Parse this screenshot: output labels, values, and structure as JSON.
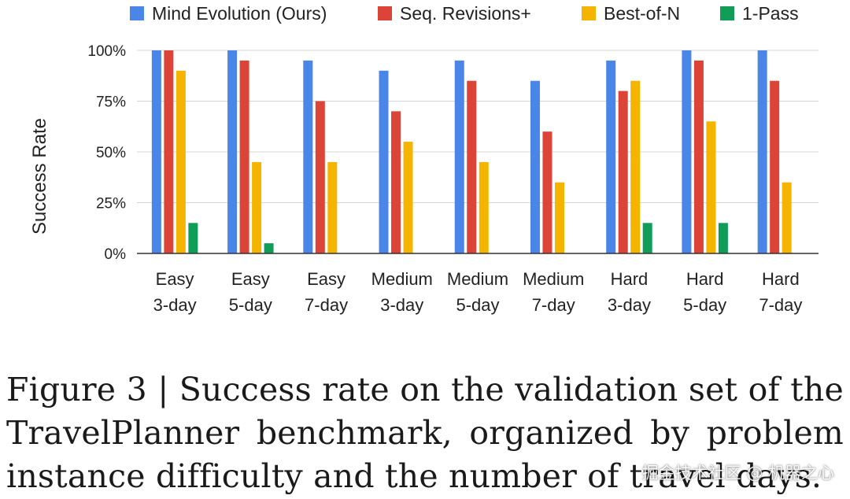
{
  "chart_data": {
    "type": "bar",
    "title": "",
    "xlabel": "",
    "ylabel": "Success Rate",
    "ylim": [
      0,
      100
    ],
    "y_ticks": [
      "0%",
      "25%",
      "50%",
      "75%",
      "100%"
    ],
    "y_tick_values": [
      0,
      25,
      50,
      75,
      100
    ],
    "grid": true,
    "legend_position": "top",
    "categories": [
      [
        "Easy",
        "3-day"
      ],
      [
        "Easy",
        "5-day"
      ],
      [
        "Easy",
        "7-day"
      ],
      [
        "Medium",
        "3-day"
      ],
      [
        "Medium",
        "5-day"
      ],
      [
        "Medium",
        "7-day"
      ],
      [
        "Hard",
        "3-day"
      ],
      [
        "Hard",
        "5-day"
      ],
      [
        "Hard",
        "7-day"
      ]
    ],
    "series": [
      {
        "name": "Mind Evolution (Ours)",
        "color": "#4a86e8",
        "values": [
          100,
          100,
          95,
          90,
          95,
          85,
          95,
          100,
          100
        ]
      },
      {
        "name": "Seq. Revisions+",
        "color": "#db4437",
        "values": [
          100,
          95,
          75,
          70,
          85,
          60,
          80,
          95,
          85
        ]
      },
      {
        "name": "Best-of-N",
        "color": "#f4b400",
        "values": [
          90,
          45,
          45,
          55,
          45,
          35,
          85,
          65,
          35
        ]
      },
      {
        "name": "1-Pass",
        "color": "#0f9d58",
        "values": [
          15,
          5,
          0,
          0,
          0,
          0,
          15,
          15,
          0
        ]
      }
    ]
  },
  "caption": "Figure 3 | Success rate on the validation set of the TravelPlanner benchmark, organized by problem instance difficulty and the number of travel days.",
  "watermark": "掘金技术社区 @ 机器之心"
}
